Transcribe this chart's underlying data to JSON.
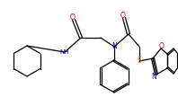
{
  "bg_color": "#ffffff",
  "line_color": "#000000",
  "atom_colors": {
    "O": "#cc0000",
    "N": "#0000cc",
    "S": "#cc8800",
    "C": "#000000"
  },
  "figsize": [
    1.98,
    1.08
  ],
  "dpi": 100
}
